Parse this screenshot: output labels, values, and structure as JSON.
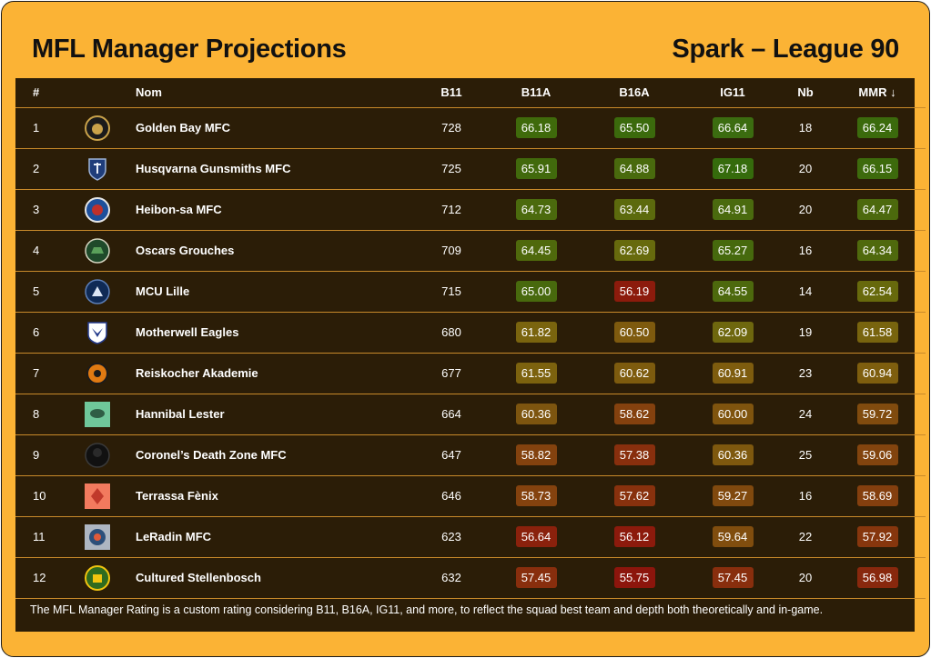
{
  "header": {
    "title": "MFL Manager Projections",
    "subtitle": "Spark – League 90"
  },
  "columns": {
    "rank": "#",
    "logo": "",
    "name": "Nom",
    "b11": "B11",
    "b11a": "B11A",
    "b16a": "B16A",
    "ig11": "IG11",
    "nb": "Nb",
    "mmr": "MMR ↓"
  },
  "colors": {
    "card_bg": "#fbb335",
    "panel_bg": "#2b1d07",
    "divider": "#c98a2a"
  },
  "rows": [
    {
      "rank": "1",
      "logo_icon": "golden-bay-crest-icon",
      "name": "Golden Bay MFC",
      "b11": "728",
      "b11a": "66.18",
      "b11a_color": "#3f6a0b",
      "b16a": "65.50",
      "b16a_color": "#3b6a0c",
      "ig11": "66.64",
      "ig11_color": "#3b6c10",
      "nb": "18",
      "mmr": "66.24",
      "mmr_color": "#3b6a0c"
    },
    {
      "rank": "2",
      "logo_icon": "gunsmiths-crest-icon",
      "name": "Husqvarna Gunsmiths MFC",
      "b11": "725",
      "b11a": "65.91",
      "b11a_color": "#41690c",
      "b16a": "64.88",
      "b16a_color": "#496a0d",
      "ig11": "67.18",
      "ig11_color": "#356b0c",
      "nb": "20",
      "mmr": "66.15",
      "mmr_color": "#3d6a0c"
    },
    {
      "rank": "3",
      "logo_icon": "heibon-crest-icon",
      "name": "Heibon-sa MFC",
      "b11": "712",
      "b11a": "64.73",
      "b11a_color": "#4b6a0d",
      "b16a": "63.44",
      "b16a_color": "#5c6a0d",
      "ig11": "64.91",
      "ig11_color": "#4a6a0e",
      "nb": "20",
      "mmr": "64.47",
      "mmr_color": "#4c690d"
    },
    {
      "rank": "4",
      "logo_icon": "oscars-crest-icon",
      "name": "Oscars Grouches",
      "b11": "709",
      "b11a": "64.45",
      "b11a_color": "#4f690c",
      "b16a": "62.69",
      "b16a_color": "#676a0d",
      "ig11": "65.27",
      "ig11_color": "#46690d",
      "nb": "16",
      "mmr": "64.34",
      "mmr_color": "#4f690d"
    },
    {
      "rank": "5",
      "logo_icon": "mcu-lille-crest-icon",
      "name": "MCU Lille",
      "b11": "715",
      "b11a": "65.00",
      "b11a_color": "#48690d",
      "b16a": "56.19",
      "b16a_color": "#8c1b0c",
      "ig11": "64.55",
      "ig11_color": "#4d690d",
      "nb": "14",
      "mmr": "62.54",
      "mmr_color": "#67690c"
    },
    {
      "rank": "6",
      "logo_icon": "eagles-crest-icon",
      "name": "Motherwell Eagles",
      "b11": "680",
      "b11a": "61.82",
      "b11a_color": "#7a640e",
      "b16a": "60.50",
      "b16a_color": "#7e5a0e",
      "ig11": "62.09",
      "ig11_color": "#6e670e",
      "nb": "19",
      "mmr": "61.58",
      "mmr_color": "#78640e"
    },
    {
      "rank": "7",
      "logo_icon": "reiskocher-crest-icon",
      "name": "Reiskocher Akademie",
      "b11": "677",
      "b11a": "61.55",
      "b11a_color": "#7c620e",
      "b16a": "60.62",
      "b16a_color": "#7d5b0e",
      "ig11": "60.91",
      "ig11_color": "#7e5c0e",
      "nb": "23",
      "mmr": "60.94",
      "mmr_color": "#7e5e0e"
    },
    {
      "rank": "8",
      "logo_icon": "hannibal-crest-icon",
      "name": "Hannibal Lester",
      "b11": "664",
      "b11a": "60.36",
      "b11a_color": "#7d550f",
      "b16a": "58.62",
      "b16a_color": "#84410e",
      "ig11": "60.00",
      "ig11_color": "#7f540e",
      "nb": "24",
      "mmr": "59.72",
      "mmr_color": "#804b0e"
    },
    {
      "rank": "9",
      "logo_icon": "coronel-crest-icon",
      "name": "Coronel’s Death Zone MFC",
      "b11": "647",
      "b11a": "58.82",
      "b11a_color": "#83420e",
      "b16a": "57.38",
      "b16a_color": "#882f0d",
      "ig11": "60.36",
      "ig11_color": "#7e580e",
      "nb": "25",
      "mmr": "59.06",
      "mmr_color": "#82440e"
    },
    {
      "rank": "10",
      "logo_icon": "terrassa-crest-icon",
      "name": "Terrassa Fènix",
      "b11": "646",
      "b11a": "58.73",
      "b11a_color": "#84420e",
      "b16a": "57.62",
      "b16a_color": "#88310d",
      "ig11": "59.27",
      "ig11_color": "#80490e",
      "nb": "16",
      "mmr": "58.69",
      "mmr_color": "#843f0e"
    },
    {
      "rank": "11",
      "logo_icon": "leradin-crest-icon",
      "name": "LeRadin MFC",
      "b11": "623",
      "b11a": "56.64",
      "b11a_color": "#8a210c",
      "b16a": "56.12",
      "b16a_color": "#8c1a0c",
      "ig11": "59.64",
      "ig11_color": "#804d0e",
      "nb": "22",
      "mmr": "57.92",
      "mmr_color": "#86360d"
    },
    {
      "rank": "12",
      "logo_icon": "stellenbosch-crest-icon",
      "name": "Cultured Stellenbosch",
      "b11": "632",
      "b11a": "57.45",
      "b11a_color": "#882e0d",
      "b16a": "55.75",
      "b16a_color": "#8c150c",
      "ig11": "57.45",
      "ig11_color": "#882e0d",
      "nb": "20",
      "mmr": "56.98",
      "mmr_color": "#88280d"
    }
  ],
  "footer": {
    "note": "The MFL Manager Rating is a custom rating considering B11, B16A, IG11, and more, to reflect the squad best team and depth both theoretically and in-game."
  }
}
